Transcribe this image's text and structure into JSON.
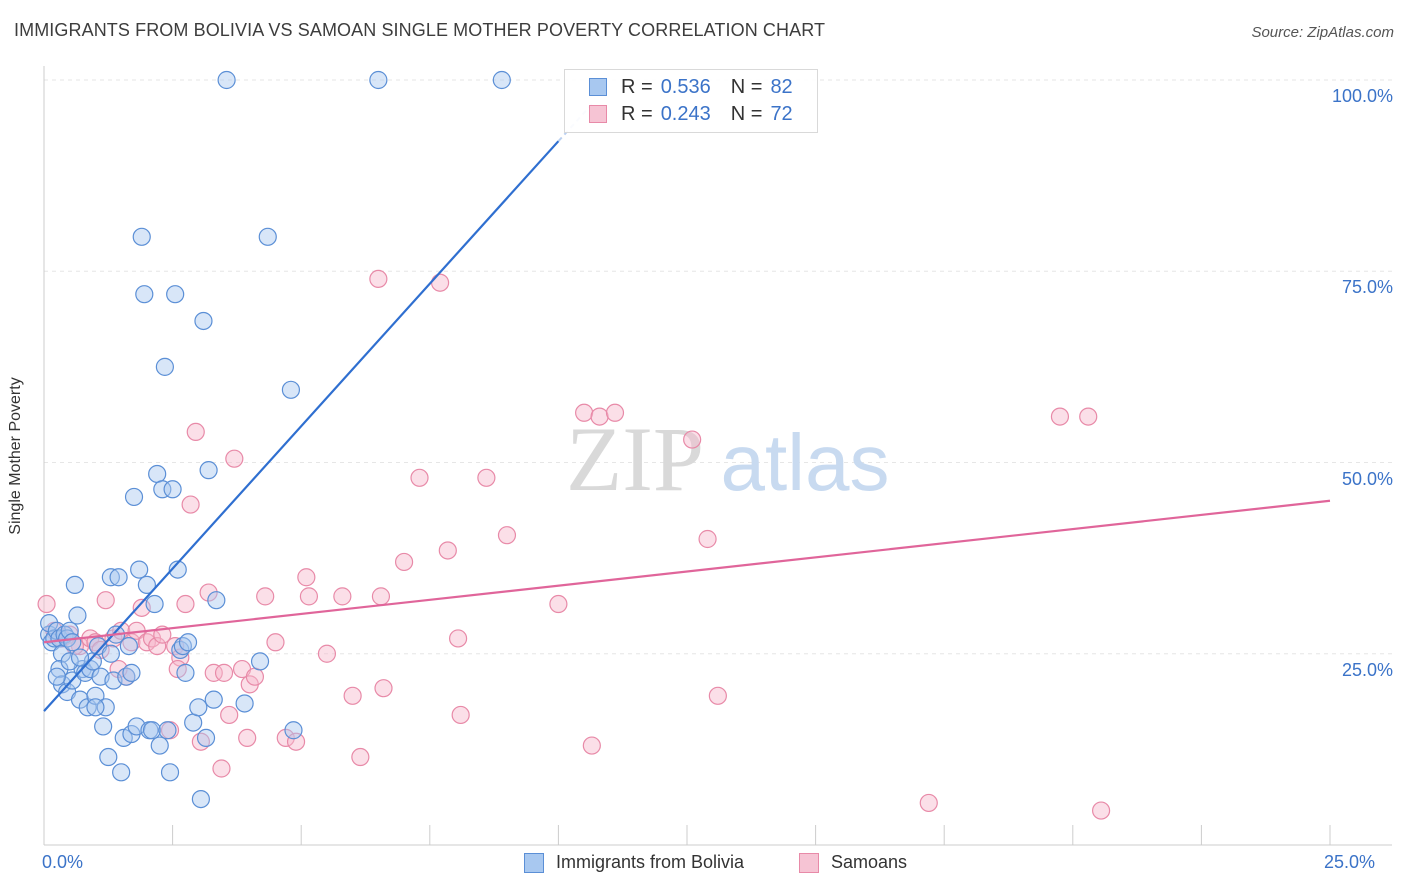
{
  "title": "IMMIGRANTS FROM BOLIVIA VS SAMOAN SINGLE MOTHER POVERTY CORRELATION CHART",
  "source": "Source: ZipAtlas.com",
  "watermark": {
    "zip": "ZIP",
    "atlas": "atlas"
  },
  "colors": {
    "blue_fill": "#a8c8f0",
    "blue_stroke": "#5b8fd6",
    "blue_line": "#2f6fd0",
    "pink_fill": "#f6b8cc",
    "pink_stroke": "#e88aa8",
    "pink_line": "#e0659a",
    "tick_text": "#3b73c8",
    "grid": "#e6e6e6"
  },
  "legend_top": {
    "rows": [
      {
        "r_label": "R =",
        "r_value": "0.536",
        "n_label": "N =",
        "n_value": "82"
      },
      {
        "r_label": "R =",
        "r_value": "0.243",
        "n_label": "N =",
        "n_value": "72"
      }
    ]
  },
  "legend_bottom": {
    "items": [
      "Immigrants from Bolivia",
      "Samoans"
    ]
  },
  "chart_data": {
    "type": "scatter",
    "title": "IMMIGRANTS FROM BOLIVIA VS SAMOAN SINGLE MOTHER POVERTY CORRELATION CHART",
    "xlabel": "",
    "ylabel": "Single Mother Poverty",
    "xlim": [
      0,
      25
    ],
    "ylim": [
      0,
      100
    ],
    "x_tick_labels": [
      "0.0%",
      "25.0%"
    ],
    "y_ticks": [
      25,
      50,
      75,
      100
    ],
    "y_tick_labels": [
      "25.0%",
      "50.0%",
      "75.0%",
      "100.0%"
    ],
    "grid": true,
    "legend_placement": "top-center",
    "series": [
      {
        "name": "Immigrants from Bolivia",
        "r": 0.536,
        "n": 82,
        "trend": {
          "x": [
            0,
            10
          ],
          "y": [
            17.5,
            92
          ]
        },
        "points": [
          [
            0.1,
            27.5
          ],
          [
            0.1,
            29
          ],
          [
            0.15,
            26.5
          ],
          [
            0.2,
            27
          ],
          [
            0.25,
            28
          ],
          [
            0.3,
            27
          ],
          [
            0.35,
            25
          ],
          [
            0.4,
            27.5
          ],
          [
            0.45,
            27
          ],
          [
            0.5,
            28
          ],
          [
            0.55,
            26.5
          ],
          [
            0.6,
            34
          ],
          [
            0.65,
            30
          ],
          [
            0.3,
            23
          ],
          [
            0.35,
            21
          ],
          [
            0.45,
            20
          ],
          [
            0.55,
            21.5
          ],
          [
            0.7,
            19
          ],
          [
            0.75,
            23
          ],
          [
            0.8,
            22.5
          ],
          [
            0.85,
            18
          ],
          [
            0.9,
            23
          ],
          [
            0.95,
            24
          ],
          [
            1.0,
            19.5
          ],
          [
            1.05,
            26
          ],
          [
            1.1,
            22
          ],
          [
            1.15,
            15.5
          ],
          [
            1.2,
            18
          ],
          [
            1.25,
            11.5
          ],
          [
            1.3,
            35
          ],
          [
            1.35,
            21.5
          ],
          [
            1.4,
            27.5
          ],
          [
            1.45,
            35
          ],
          [
            1.5,
            9.5
          ],
          [
            1.55,
            14
          ],
          [
            1.6,
            22
          ],
          [
            1.65,
            26
          ],
          [
            1.7,
            14.5
          ],
          [
            1.7,
            22.5
          ],
          [
            1.75,
            45.5
          ],
          [
            1.8,
            15.5
          ],
          [
            1.85,
            36
          ],
          [
            1.9,
            79.5
          ],
          [
            1.95,
            72
          ],
          [
            2.0,
            34
          ],
          [
            2.05,
            15
          ],
          [
            2.1,
            15
          ],
          [
            2.15,
            31.5
          ],
          [
            2.2,
            48.5
          ],
          [
            2.25,
            13
          ],
          [
            2.3,
            46.5
          ],
          [
            2.35,
            62.5
          ],
          [
            2.4,
            15
          ],
          [
            2.45,
            9.5
          ],
          [
            2.5,
            46.5
          ],
          [
            2.55,
            72
          ],
          [
            2.6,
            36
          ],
          [
            2.65,
            25.5
          ],
          [
            2.7,
            26
          ],
          [
            2.75,
            22.5
          ],
          [
            2.8,
            26.5
          ],
          [
            2.9,
            16
          ],
          [
            3.0,
            18
          ],
          [
            3.05,
            6
          ],
          [
            3.1,
            68.5
          ],
          [
            3.15,
            14
          ],
          [
            3.2,
            49
          ],
          [
            3.3,
            19
          ],
          [
            3.35,
            32
          ],
          [
            3.55,
            100
          ],
          [
            3.9,
            18.5
          ],
          [
            4.2,
            24
          ],
          [
            4.35,
            79.5
          ],
          [
            4.8,
            59.5
          ],
          [
            4.85,
            15
          ],
          [
            6.5,
            100
          ],
          [
            8.9,
            100
          ],
          [
            0.5,
            24
          ],
          [
            1.0,
            18
          ],
          [
            0.25,
            22
          ],
          [
            1.3,
            25
          ],
          [
            0.7,
            24.5
          ]
        ]
      },
      {
        "name": "Samoans",
        "r": 0.243,
        "n": 72,
        "trend": {
          "x": [
            0,
            25
          ],
          "y": [
            26.5,
            45
          ]
        },
        "points": [
          [
            0.05,
            31.5
          ],
          [
            0.2,
            28
          ],
          [
            0.35,
            27
          ],
          [
            0.5,
            27.5
          ],
          [
            0.7,
            26
          ],
          [
            0.9,
            27
          ],
          [
            1.0,
            26.5
          ],
          [
            1.1,
            25.5
          ],
          [
            1.2,
            32
          ],
          [
            1.35,
            27
          ],
          [
            1.5,
            28
          ],
          [
            1.6,
            22
          ],
          [
            1.7,
            26.5
          ],
          [
            1.8,
            28
          ],
          [
            1.9,
            31
          ],
          [
            2.0,
            26.5
          ],
          [
            2.1,
            27
          ],
          [
            2.2,
            26
          ],
          [
            2.3,
            27.5
          ],
          [
            2.45,
            15
          ],
          [
            2.55,
            26
          ],
          [
            2.65,
            24.5
          ],
          [
            2.75,
            31.5
          ],
          [
            2.85,
            44.5
          ],
          [
            2.95,
            54
          ],
          [
            3.05,
            13.5
          ],
          [
            3.2,
            33
          ],
          [
            3.3,
            22.5
          ],
          [
            3.45,
            10
          ],
          [
            3.5,
            22.5
          ],
          [
            3.6,
            17
          ],
          [
            3.7,
            50.5
          ],
          [
            3.85,
            23
          ],
          [
            3.95,
            14
          ],
          [
            4.0,
            21
          ],
          [
            4.1,
            22
          ],
          [
            4.3,
            32.5
          ],
          [
            4.5,
            26.5
          ],
          [
            4.7,
            14
          ],
          [
            4.9,
            13.5
          ],
          [
            5.1,
            35
          ],
          [
            5.15,
            32.5
          ],
          [
            5.5,
            25
          ],
          [
            5.8,
            32.5
          ],
          [
            6.0,
            19.5
          ],
          [
            6.15,
            11.5
          ],
          [
            6.5,
            74
          ],
          [
            6.55,
            32.5
          ],
          [
            6.6,
            20.5
          ],
          [
            7.0,
            37
          ],
          [
            7.3,
            48
          ],
          [
            7.7,
            73.5
          ],
          [
            7.85,
            38.5
          ],
          [
            8.05,
            27
          ],
          [
            8.1,
            17
          ],
          [
            8.6,
            48
          ],
          [
            9.0,
            40.5
          ],
          [
            10.0,
            31.5
          ],
          [
            10.5,
            56.5
          ],
          [
            10.65,
            13
          ],
          [
            10.8,
            56
          ],
          [
            11.1,
            56.5
          ],
          [
            12.6,
            53
          ],
          [
            12.9,
            40
          ],
          [
            13.1,
            19.5
          ],
          [
            17.2,
            5.5
          ],
          [
            19.75,
            56
          ],
          [
            20.3,
            56
          ],
          [
            20.55,
            4.5
          ],
          [
            0.6,
            26
          ],
          [
            1.45,
            23
          ],
          [
            2.6,
            23
          ]
        ]
      }
    ]
  }
}
